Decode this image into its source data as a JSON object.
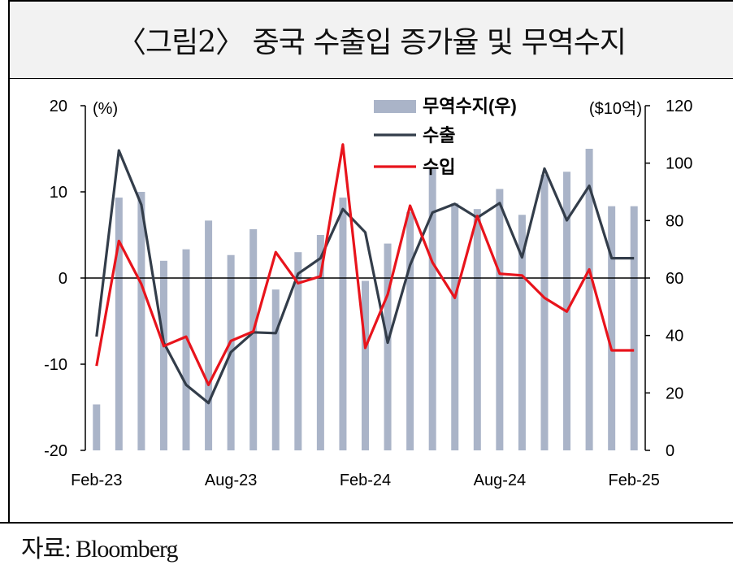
{
  "title": "〈그림2〉 중국 수출입 증가율 및 무역수지",
  "source": "자료: Bloomberg",
  "chart_data": {
    "type": "bar",
    "left_unit": "(%)",
    "right_unit": "($10억)",
    "x": [
      "2023-02",
      "2023-03",
      "2023-04",
      "2023-05",
      "2023-06",
      "2023-07",
      "2023-08",
      "2023-09",
      "2023-10",
      "2023-11",
      "2023-12",
      "2024-01",
      "2024-02",
      "2024-03",
      "2024-04",
      "2024-05",
      "2024-06",
      "2024-07",
      "2024-08",
      "2024-09",
      "2024-10",
      "2024-11",
      "2024-12",
      "2025-01",
      "2025-02"
    ],
    "x_tick_labels": [
      "Feb-23",
      "Aug-23",
      "Feb-24",
      "Aug-24",
      "Feb-25"
    ],
    "y_left_range": [
      -20,
      20
    ],
    "y_left_ticks": [
      "20",
      "10",
      "0",
      "-10",
      "-20"
    ],
    "y_right_range": [
      0,
      120
    ],
    "y_right_ticks": [
      "120",
      "100",
      "80",
      "60",
      "40",
      "20",
      "0"
    ],
    "series": [
      {
        "name": "무역수지(우)",
        "kind": "bar",
        "axis": "right",
        "color": "#aab4c8",
        "values": [
          16,
          88,
          90,
          66,
          70,
          80,
          68,
          77,
          56,
          69,
          75,
          88,
          59,
          72,
          83,
          98,
          86,
          84,
          91,
          82,
          96,
          97,
          105,
          85,
          85
        ]
      },
      {
        "name": "수출",
        "kind": "line",
        "axis": "left",
        "color": "#333d4a",
        "values": [
          -6.8,
          14.8,
          8.5,
          -7.5,
          -12.4,
          -14.5,
          -8.6,
          -6.3,
          -6.4,
          0.5,
          2.3,
          8.0,
          5.3,
          -7.5,
          1.5,
          7.6,
          8.6,
          7.0,
          8.7,
          2.4,
          12.7,
          6.7,
          10.7,
          2.3,
          2.3
        ]
      },
      {
        "name": "수입",
        "kind": "line",
        "axis": "left",
        "color": "#e8141c",
        "values": [
          -10.2,
          4.3,
          -0.7,
          -7.9,
          -6.8,
          -12.4,
          -7.3,
          -6.2,
          3.0,
          -0.6,
          0.2,
          15.5,
          -8.1,
          -1.9,
          8.4,
          1.8,
          -2.3,
          7.2,
          0.5,
          0.3,
          -2.3,
          -3.9,
          1.0,
          -8.4,
          -8.4
        ]
      }
    ]
  }
}
